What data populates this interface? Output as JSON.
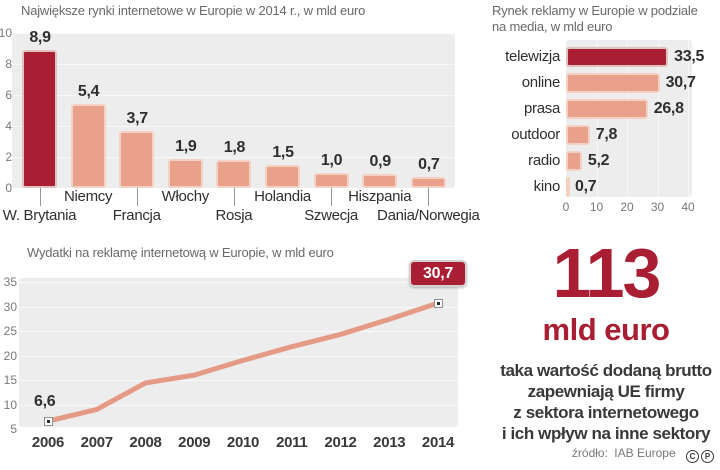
{
  "page": {
    "background": "#ffffff",
    "colors": {
      "accent_dark_red": "#a91e32",
      "accent_salmon": "#e9a18b",
      "salmon_border": "#f3d2c3",
      "plot_background": "#ededee",
      "gridline": "#d6d6d8",
      "text_dark": "#2f2f31",
      "text_gray": "#68696b",
      "tick_gray": "#77787a"
    },
    "source": {
      "label": "źródło:",
      "value": "IAB Europe"
    },
    "copyright_icons": [
      {
        "name": "copyright-icon",
        "letter": "C"
      },
      {
        "name": "phonogram-icon",
        "letter": "P"
      }
    ]
  },
  "chart_data": [
    {
      "id": "top-internet-markets",
      "type": "bar",
      "title": "Największe rynki internetowe w Europie w 2014 r., w mld euro",
      "categories": [
        "W. Brytania",
        "Niemcy",
        "Francja",
        "Włochy",
        "Rosja",
        "Holandia",
        "Szwecja",
        "Hiszpania",
        "Dania/Norwegia"
      ],
      "values": [
        8.9,
        5.4,
        3.7,
        1.9,
        1.8,
        1.5,
        1.0,
        0.9,
        0.7
      ],
      "value_labels": [
        "8,9",
        "5,4",
        "3,7",
        "1,9",
        "1,8",
        "1,5",
        "1,0",
        "0,9",
        "0,7"
      ],
      "ylim": [
        0,
        10
      ],
      "yticks": [
        0,
        2,
        4,
        6,
        8,
        10
      ],
      "highlight_index": 0,
      "grid": true,
      "legend": "none"
    },
    {
      "id": "ad-market-by-media",
      "type": "bar",
      "orientation": "horizontal",
      "title_lines": [
        "Rynek reklamy w Europie w podziale",
        "na media, w mld euro"
      ],
      "categories": [
        "telewizja",
        "online",
        "prasa",
        "outdoor",
        "radio",
        "kino"
      ],
      "values": [
        33.5,
        30.7,
        26.8,
        7.8,
        5.2,
        0.7
      ],
      "value_labels": [
        "33,5",
        "30,7",
        "26,8",
        "7,8",
        "5,2",
        "0,7"
      ],
      "xlim": [
        0,
        40
      ],
      "xticks": [
        0,
        10,
        20,
        30,
        40
      ],
      "highlight_index": 0,
      "grid": true,
      "legend": "none"
    },
    {
      "id": "online-ad-spend",
      "type": "line",
      "title": "Wydatki na reklamę internetową w Europie, w mld euro",
      "x": [
        2006,
        2007,
        2008,
        2009,
        2010,
        2011,
        2012,
        2013,
        2014
      ],
      "y": [
        6.6,
        9.0,
        14.4,
        16.0,
        19.0,
        21.8,
        24.3,
        27.4,
        30.7
      ],
      "first_point_label": "6,6",
      "last_point_label": "30,7",
      "ylim": [
        5,
        35
      ],
      "yticks": [
        5,
        10,
        15,
        20,
        25,
        30,
        35
      ],
      "grid": true,
      "legend": "none"
    }
  ],
  "highlight_panel": {
    "big_number": "113",
    "unit": "mld euro",
    "lines": [
      "taka wartość dodaną brutto",
      "zapewniają UE firmy",
      "z sektora internetowego",
      "i ich wpływ na inne sektory"
    ]
  }
}
